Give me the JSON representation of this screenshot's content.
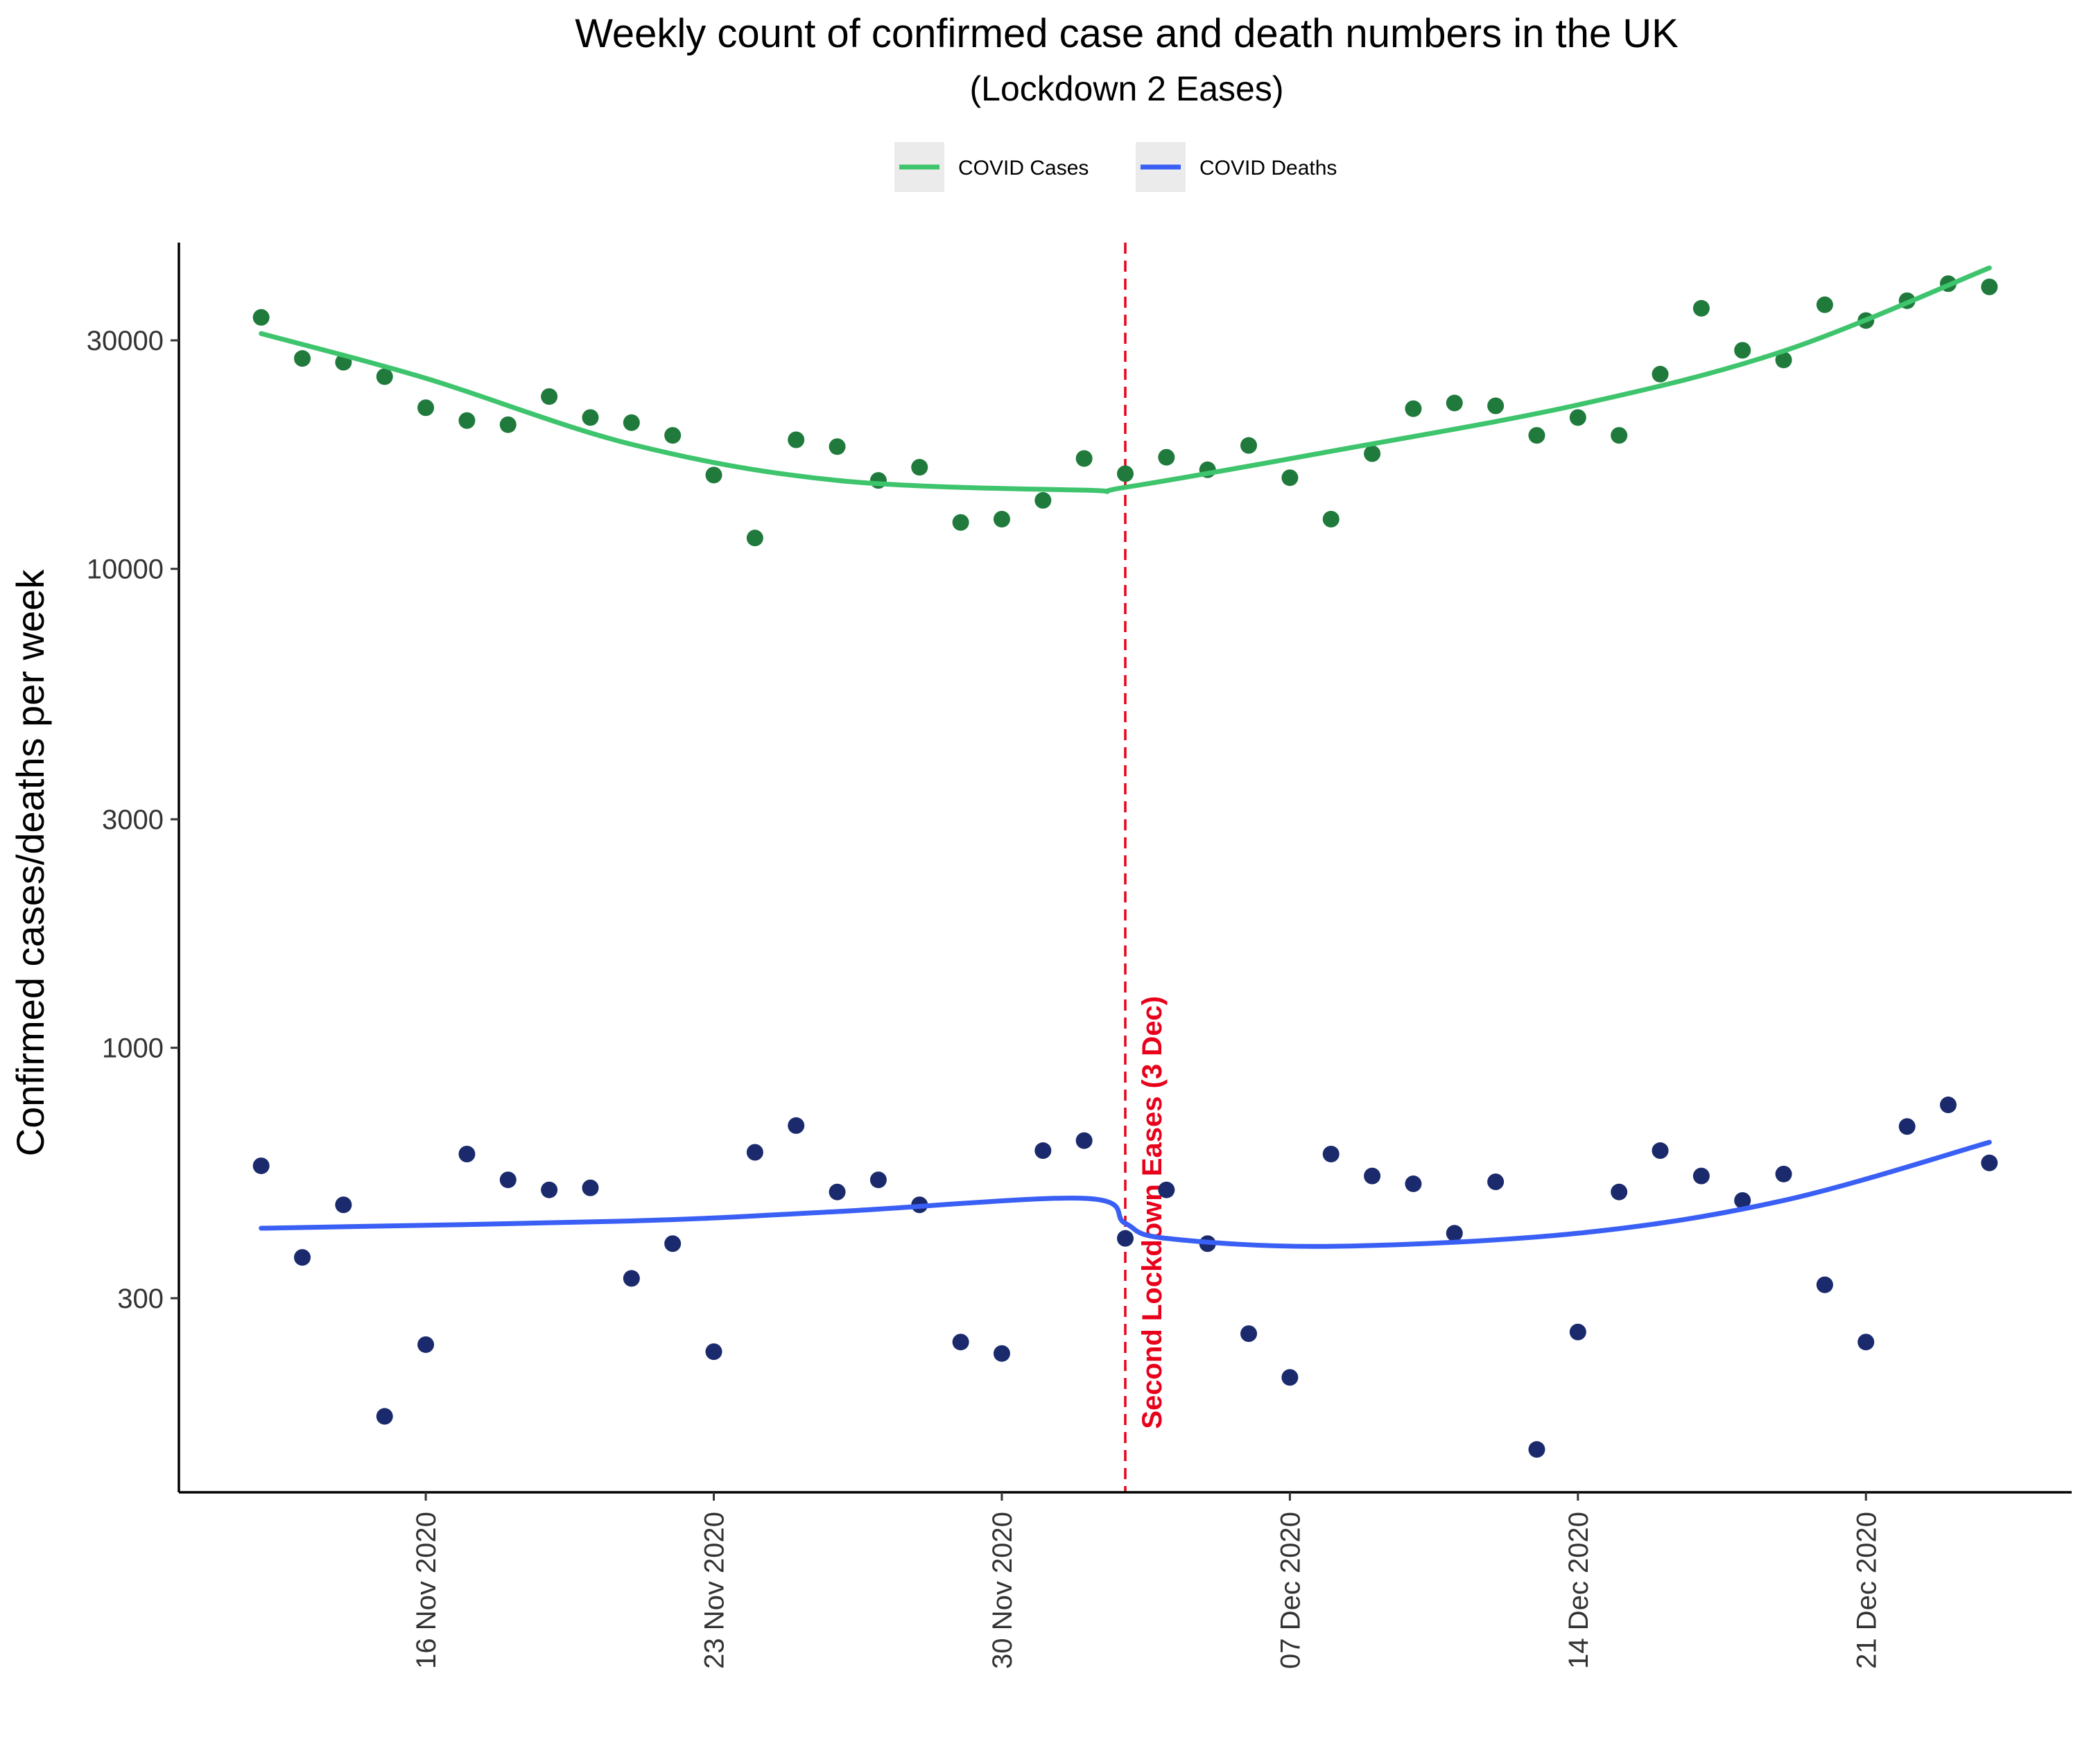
{
  "chart_data": {
    "type": "scatter",
    "title": "Weekly count of confirmed case and death numbers in the UK",
    "subtitle": "(Lockdown 2 Eases)",
    "ylabel": "Confirmed cases/deaths per week",
    "xlabel": "",
    "y_scale": "log",
    "ylim": [
      118,
      48000
    ],
    "xlim": [
      "2020-11-10",
      "2020-12-26"
    ],
    "y_ticks": [
      300,
      1000,
      3000,
      10000,
      30000
    ],
    "y_tick_labels": [
      "300",
      "1000",
      "3000",
      "10000",
      "30000"
    ],
    "x_ticks": [
      "2020-11-16",
      "2020-11-23",
      "2020-11-30",
      "2020-12-07",
      "2020-12-14",
      "2020-12-21"
    ],
    "x_tick_labels": [
      "16 Nov 2020",
      "23 Nov 2020",
      "30 Nov 2020",
      "07 Dec 2020",
      "14 Dec 2020",
      "21 Dec 2020"
    ],
    "grid": false,
    "legend_position": "top",
    "legend": [
      {
        "name": "COVID Cases",
        "color": "#3ec46d"
      },
      {
        "name": "COVID Deaths",
        "color": "#3a5ff5"
      }
    ],
    "annotation": {
      "date": "2020-12-03",
      "text": "Second Lockdown Eases (3 Dec)",
      "color": "#e8001a"
    },
    "dates": [
      "2020-11-12",
      "2020-11-13",
      "2020-11-14",
      "2020-11-15",
      "2020-11-16",
      "2020-11-17",
      "2020-11-18",
      "2020-11-19",
      "2020-11-20",
      "2020-11-21",
      "2020-11-22",
      "2020-11-23",
      "2020-11-24",
      "2020-11-25",
      "2020-11-26",
      "2020-11-27",
      "2020-11-28",
      "2020-11-29",
      "2020-11-30",
      "2020-12-01",
      "2020-12-02",
      "2020-12-03",
      "2020-12-04",
      "2020-12-05",
      "2020-12-06",
      "2020-12-07",
      "2020-12-08",
      "2020-12-09",
      "2020-12-10",
      "2020-12-11",
      "2020-12-12",
      "2020-12-13",
      "2020-12-14",
      "2020-12-15",
      "2020-12-16",
      "2020-12-17",
      "2020-12-18",
      "2020-12-19",
      "2020-12-20",
      "2020-12-21",
      "2020-12-22",
      "2020-12-23",
      "2020-12-24"
    ],
    "series": [
      {
        "name": "COVID Cases",
        "point_color": "#1f7a3c",
        "line_color": "#3ec46d",
        "values": [
          33500,
          27500,
          27000,
          25200,
          21700,
          20400,
          20000,
          22900,
          20700,
          20200,
          19000,
          15700,
          11600,
          18600,
          18000,
          15300,
          16300,
          12500,
          12700,
          13900,
          17000,
          15800,
          17100,
          16100,
          18100,
          15500,
          12700,
          17400,
          21600,
          22200,
          21900,
          19000,
          20700,
          19000,
          25500,
          35000,
          28600,
          27300,
          35600,
          33000,
          36300,
          39400,
          38800
        ],
        "fit_dates": [
          "2020-11-12",
          "2020-11-16",
          "2020-11-21",
          "2020-11-26",
          "2020-12-02",
          "2020-12-03",
          "2020-12-08",
          "2020-12-14",
          "2020-12-19",
          "2020-12-24"
        ],
        "fit_values": [
          31000,
          25000,
          18200,
          15300,
          14600,
          14800,
          17600,
          22000,
          28500,
          42500
        ]
      },
      {
        "name": "COVID Deaths",
        "point_color": "#1a2a6c",
        "line_color": "#3a5ff5",
        "values": [
          567,
          365,
          470,
          170,
          240,
          600,
          530,
          505,
          510,
          330,
          390,
          232,
          605,
          688,
          500,
          530,
          470,
          243,
          230,
          610,
          640,
          400,
          505,
          390,
          253,
          205,
          600,
          540,
          520,
          410,
          525,
          145,
          255,
          500,
          610,
          540,
          480,
          545,
          320,
          243,
          685,
          760,
          575
        ],
        "fit_dates": [
          "2020-11-12",
          "2020-11-21",
          "2020-11-26",
          "2020-12-02",
          "2020-12-03",
          "2020-12-04",
          "2020-12-08",
          "2020-12-14",
          "2020-12-19",
          "2020-12-24"
        ],
        "fit_values": [
          420,
          435,
          455,
          485,
          430,
          400,
          385,
          410,
          480,
          635
        ]
      }
    ]
  }
}
